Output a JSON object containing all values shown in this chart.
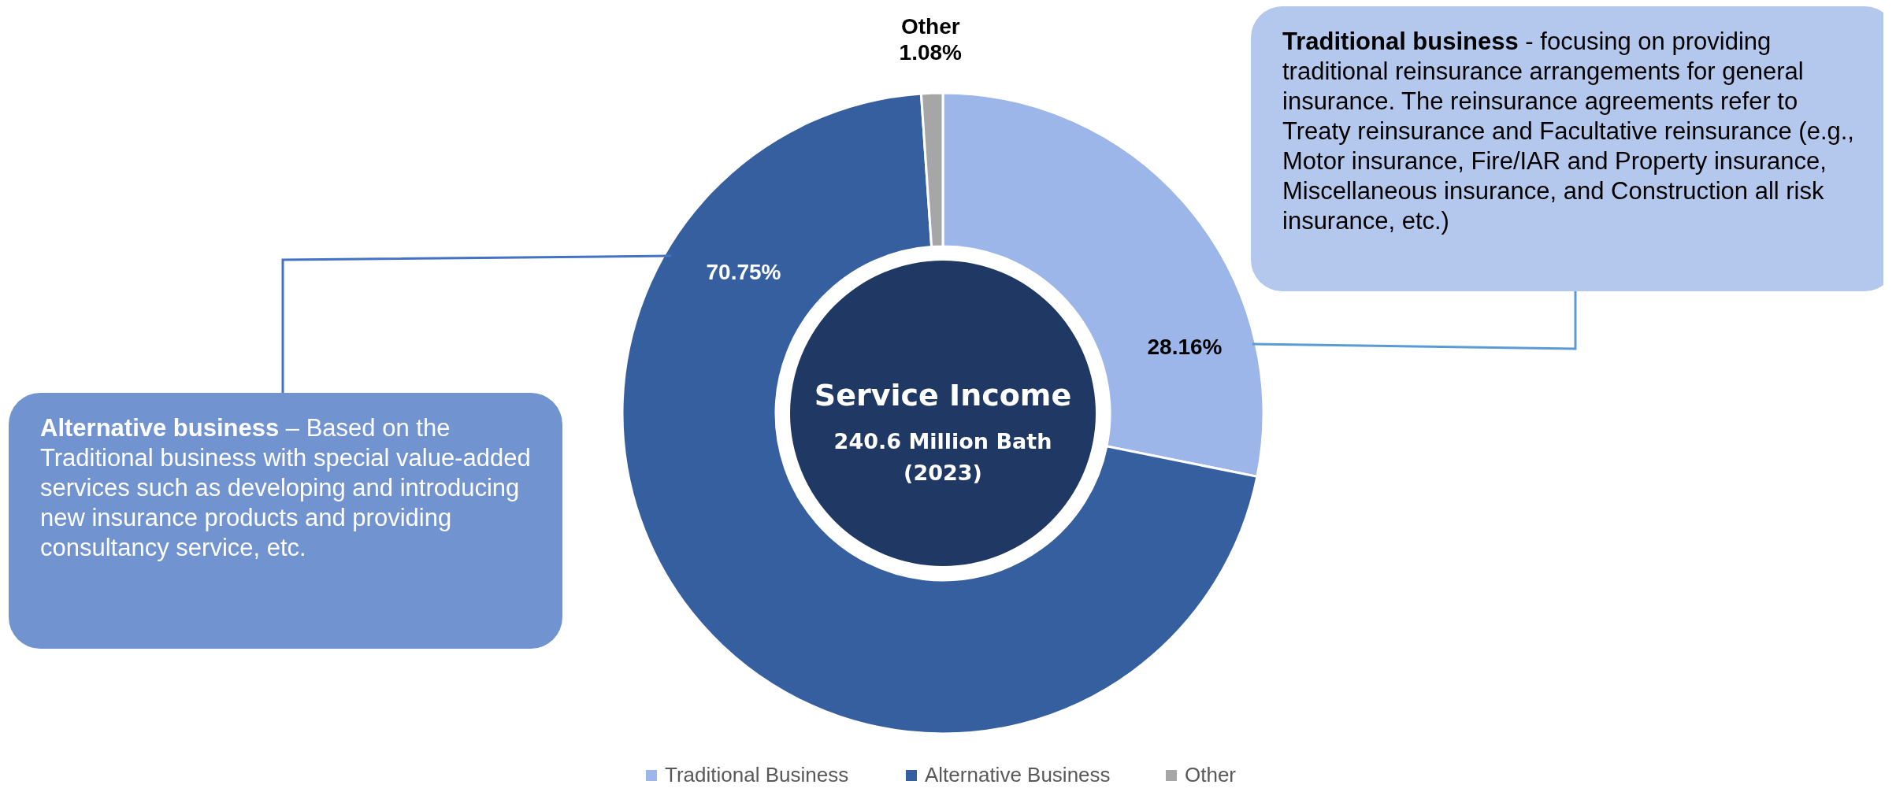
{
  "chart_data": {
    "type": "donut",
    "title": "Service Income",
    "subtitle": "240.6 Million Bath\n(2023)",
    "categories": [
      "Traditional Business",
      "Alternative Business",
      "Other"
    ],
    "values": [
      28.16,
      70.75,
      1.08
    ],
    "colors": [
      "#9cb6e9",
      "#365f9f",
      "#a6a6a6"
    ],
    "value_labels": [
      "28.16%",
      "70.75%",
      "1.08%"
    ],
    "legend": "bottom",
    "annotations": [
      "Traditional business - focusing on providing traditional reinsurance arrangements for general insurance. The reinsurance agreements refer to Treaty reinsurance and Facultative reinsurance (e.g., Motor insurance, Fire/IAR and Property insurance, Miscellaneous insurance, and Construction all risk insurance, etc.)",
      "Alternative business – Based on the Traditional business with special value-added services such as developing and introducing new insurance products and providing consultancy service, etc."
    ]
  }
}
